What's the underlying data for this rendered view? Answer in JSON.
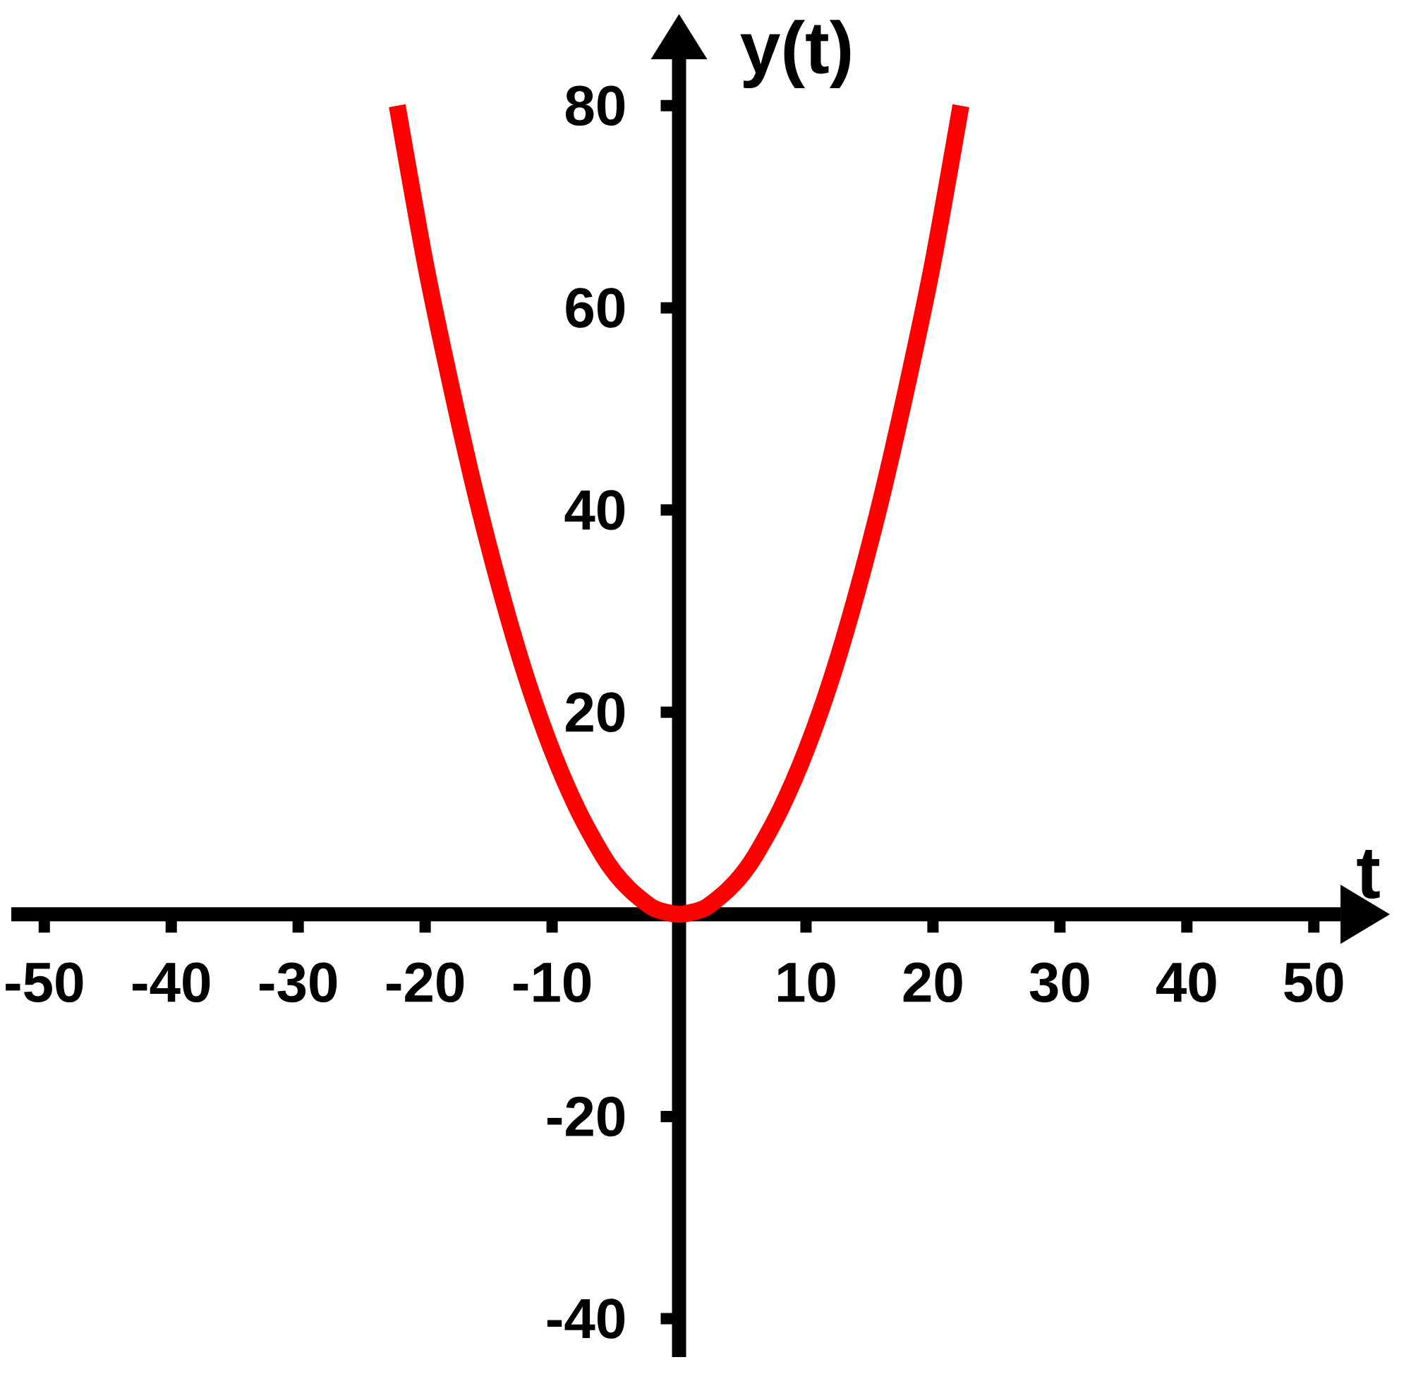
{
  "chart_data": {
    "type": "line",
    "xlabel": "t",
    "ylabel": "y(t)",
    "x": [
      -22.2,
      -20,
      -18,
      -16,
      -14,
      -12,
      -10,
      -8,
      -6,
      -5,
      -4,
      -3,
      -2,
      -1,
      0,
      1,
      2,
      3,
      4,
      5,
      6,
      8,
      10,
      12,
      14,
      16,
      18,
      20,
      22.2
    ],
    "series": [
      {
        "color": "#ff0000",
        "values": [
          80,
          64.5,
          52.5,
          41.5,
          31.8,
          23.3,
          16.2,
          10.4,
          5.8,
          4,
          2.6,
          1.5,
          0.6,
          0.2,
          0,
          0.2,
          0.6,
          1.5,
          2.6,
          4,
          5.8,
          10.4,
          16.2,
          23.3,
          31.8,
          41.5,
          52.5,
          64.5,
          80
        ]
      }
    ],
    "xlim": [
      -52.6,
      52.1
    ],
    "ylim": [
      -43.8,
      84.6
    ],
    "xticks": [
      -50,
      -40,
      -30,
      -20,
      -10,
      10,
      20,
      30,
      40,
      50
    ],
    "yticks": [
      -40,
      -20,
      20,
      40,
      60,
      80
    ]
  }
}
